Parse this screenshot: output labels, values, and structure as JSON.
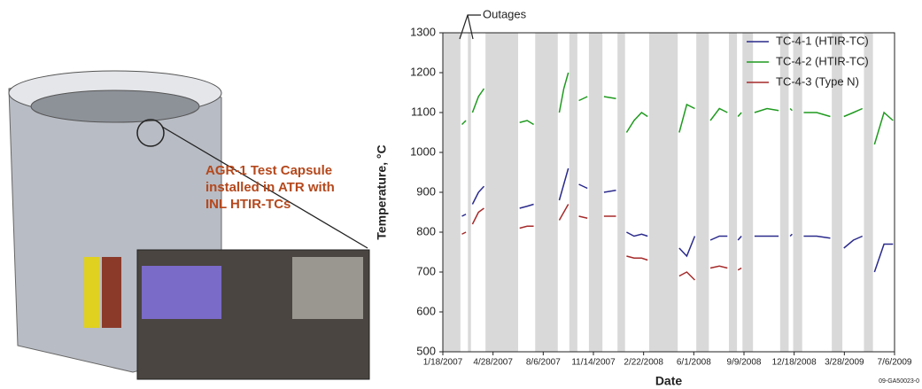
{
  "illustration": {
    "caption": [
      "AGR-1 Test Capsule",
      "installed in ATR with",
      "INL HTIR-TCs"
    ]
  },
  "chart_data": {
    "type": "line",
    "y_label": "Temperature, °C",
    "x_label": "Date",
    "annotation": "Outages",
    "footnote": "09-GA50023-0",
    "xlim": [
      "1/18/2007",
      "7/6/2009"
    ],
    "xticks": [
      "1/18/2007",
      "4/28/2007",
      "8/6/2007",
      "11/14/2007",
      "2/22/2008",
      "6/1/2008",
      "9/9/2008",
      "12/18/2008",
      "3/28/2009",
      "7/6/2009"
    ],
    "ylim": [
      500,
      1300
    ],
    "yticks": [
      500,
      600,
      700,
      800,
      900,
      1000,
      1100,
      1200,
      1300
    ],
    "legend": "top-right",
    "outage_color": "#d9d9d9",
    "outages": [
      [
        "1/18/2007",
        "2/22/2007"
      ],
      [
        "3/9/2007",
        "3/15/2007"
      ],
      [
        "4/13/2007",
        "6/17/2007"
      ],
      [
        "7/21/2007",
        "9/4/2007"
      ],
      [
        "9/27/2007",
        "10/13/2007"
      ],
      [
        "11/5/2007",
        "12/2/2007"
      ],
      [
        "1/1/2008",
        "1/16/2008"
      ],
      [
        "3/4/2008",
        "4/30/2008"
      ],
      [
        "6/6/2008",
        "7/1/2008"
      ],
      [
        "8/10/2008",
        "8/26/2008"
      ],
      [
        "9/6/2008",
        "9/27/2008"
      ],
      [
        "11/20/2008",
        "12/7/2008"
      ],
      [
        "12/16/2008",
        "1/3/2009"
      ],
      [
        "3/3/2009",
        "3/24/2009"
      ],
      [
        "5/6/2009",
        "5/24/2009"
      ]
    ],
    "x": [
      "2/25/2007",
      "3/5/2007",
      "3/11/2007",
      "3/18/2007",
      "3/30/2007",
      "4/10/2007",
      "5/15/2007",
      "6/20/2007",
      "7/5/2007",
      "7/18/2007",
      "8/10/2007",
      "9/7/2007",
      "9/16/2007",
      "9/25/2007",
      "10/5/2007",
      "10/16/2007",
      "11/2/2007",
      "11/20/2007",
      "12/5/2007",
      "12/29/2007",
      "1/8/2008",
      "1/19/2008",
      "2/3/2008",
      "2/18/2008",
      "3/1/2008",
      "4/1/2008",
      "5/3/2008",
      "5/18/2008",
      "6/3/2008",
      "6/18/2008",
      "7/4/2008",
      "7/22/2008",
      "8/7/2008",
      "8/18/2008",
      "8/28/2008",
      "9/4/2008",
      "9/16/2008",
      "9/30/2008",
      "10/25/2008",
      "11/17/2008",
      "11/28/2008",
      "12/10/2008",
      "12/14/2008",
      "12/25/2008",
      "1/6/2009",
      "2/1/2009",
      "2/28/2009",
      "3/13/2009",
      "3/27/2009",
      "4/15/2009",
      "5/3/2009",
      "5/15/2009",
      "5/27/2009",
      "6/15/2009",
      "7/3/2009"
    ],
    "series": [
      {
        "name": "TC-4-1 (HTIR-TC)",
        "color": "#2a2a8c",
        "values": [
          840,
          845,
          null,
          870,
          900,
          915,
          null,
          860,
          865,
          870,
          null,
          880,
          920,
          960,
          null,
          920,
          910,
          null,
          900,
          905,
          null,
          800,
          790,
          795,
          790,
          null,
          760,
          740,
          790,
          null,
          780,
          790,
          790,
          null,
          780,
          790,
          null,
          790,
          790,
          790,
          null,
          790,
          795,
          null,
          790,
          790,
          785,
          null,
          760,
          780,
          790,
          null,
          700,
          770,
          770
        ]
      },
      {
        "name": "TC-4-2 (HTIR-TC)",
        "color": "#1f9a1f",
        "values": [
          1070,
          1080,
          null,
          1100,
          1140,
          1160,
          null,
          1075,
          1080,
          1070,
          null,
          1100,
          1160,
          1200,
          null,
          1130,
          1140,
          null,
          1140,
          1135,
          null,
          1050,
          1080,
          1100,
          1090,
          null,
          1050,
          1120,
          1110,
          null,
          1080,
          1110,
          1100,
          null,
          1090,
          1100,
          null,
          1100,
          1110,
          1105,
          null,
          1110,
          1105,
          null,
          1100,
          1100,
          1090,
          null,
          1090,
          1100,
          1110,
          null,
          1020,
          1100,
          1080
        ]
      },
      {
        "name": "TC-4-3 (Type N)",
        "color": "#a52a2a",
        "values": [
          795,
          800,
          null,
          820,
          850,
          860,
          null,
          810,
          815,
          815,
          null,
          830,
          850,
          870,
          null,
          840,
          835,
          null,
          840,
          840,
          null,
          740,
          735,
          735,
          730,
          null,
          690,
          700,
          680,
          null,
          710,
          715,
          710,
          null,
          705,
          710,
          null,
          null,
          null,
          null,
          null,
          null,
          null,
          null,
          null,
          null,
          null,
          null,
          null,
          null,
          null,
          null,
          null,
          null,
          null
        ]
      }
    ]
  }
}
